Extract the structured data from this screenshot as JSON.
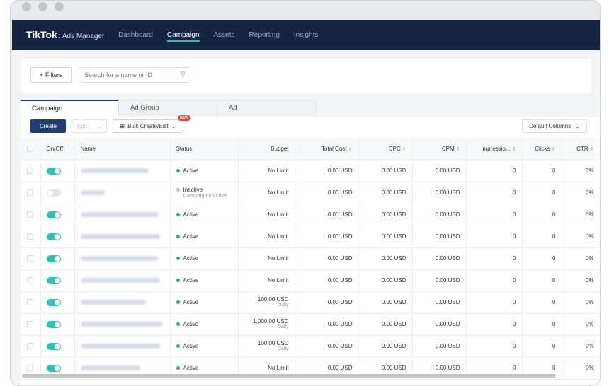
{
  "window": {
    "dots": [
      "close",
      "minimize",
      "maximize"
    ]
  },
  "header": {
    "logo": "TikTok",
    "logo_sub": ": Ads Manager",
    "nav": [
      {
        "label": "Dashboard",
        "active": false
      },
      {
        "label": "Campaign",
        "active": true
      },
      {
        "label": "Assets",
        "active": false
      },
      {
        "label": "Reporting",
        "active": false
      },
      {
        "label": "Insights",
        "active": false
      }
    ]
  },
  "filters": {
    "button_label": "Filters",
    "search_placeholder": "Search for a name or ID"
  },
  "tabs": [
    "Campaign",
    "Ad Group",
    "Ad"
  ],
  "toolbar": {
    "create": "Create",
    "edit": "Edit",
    "bulk": "Bulk Create/Edit",
    "new_badge": "NEW",
    "columns": "Default Columns"
  },
  "table": {
    "headers": [
      "On/Off",
      "Name",
      "Status",
      "Budget",
      "Total Cost",
      "CPC",
      "CPM",
      "Impressio...",
      "Clicks",
      "CTR"
    ],
    "rows": [
      {
        "on": true,
        "status": "Active",
        "status_sub": "",
        "budget": "No Limit",
        "budget_sub": "",
        "cost": "0.00 USD",
        "cpc": "0.00 USD",
        "cpm": "0.00 USD",
        "impr": "0",
        "clicks": "0",
        "ctr": "0%"
      },
      {
        "on": false,
        "status": "Inactive",
        "status_sub": "Campaign inactive",
        "budget": "No Limit",
        "budget_sub": "",
        "cost": "0.00 USD",
        "cpc": "0.00 USD",
        "cpm": "0.00 USD",
        "impr": "0",
        "clicks": "0",
        "ctr": "0%"
      },
      {
        "on": true,
        "status": "Active",
        "status_sub": "",
        "budget": "No Limit",
        "budget_sub": "",
        "cost": "0.00 USD",
        "cpc": "0.00 USD",
        "cpm": "0.00 USD",
        "impr": "0",
        "clicks": "0",
        "ctr": "0%"
      },
      {
        "on": true,
        "status": "Active",
        "status_sub": "",
        "budget": "No Limit",
        "budget_sub": "",
        "cost": "0.00 USD",
        "cpc": "0.00 USD",
        "cpm": "0.00 USD",
        "impr": "0",
        "clicks": "0",
        "ctr": "0%"
      },
      {
        "on": true,
        "status": "Active",
        "status_sub": "",
        "budget": "No Limit",
        "budget_sub": "",
        "cost": "0.00 USD",
        "cpc": "0.00 USD",
        "cpm": "0.00 USD",
        "impr": "0",
        "clicks": "0",
        "ctr": "0%"
      },
      {
        "on": true,
        "status": "Active",
        "status_sub": "",
        "budget": "No Limit",
        "budget_sub": "",
        "cost": "0.00 USD",
        "cpc": "0.00 USD",
        "cpm": "0.00 USD",
        "impr": "0",
        "clicks": "0",
        "ctr": "0%"
      },
      {
        "on": true,
        "status": "Active",
        "status_sub": "",
        "budget": "100.00 USD",
        "budget_sub": "Daily",
        "cost": "0.00 USD",
        "cpc": "0.00 USD",
        "cpm": "0.00 USD",
        "impr": "0",
        "clicks": "0",
        "ctr": "0%"
      },
      {
        "on": true,
        "status": "Active",
        "status_sub": "",
        "budget": "1,000.00 USD",
        "budget_sub": "Daily",
        "cost": "0.00 USD",
        "cpc": "0.00 USD",
        "cpm": "0.00 USD",
        "impr": "0",
        "clicks": "0",
        "ctr": "0%"
      },
      {
        "on": true,
        "status": "Active",
        "status_sub": "",
        "budget": "100.00 USD",
        "budget_sub": "Daily",
        "cost": "0.00 USD",
        "cpc": "0.00 USD",
        "cpm": "0.00 USD",
        "impr": "0",
        "clicks": "0",
        "ctr": "0%"
      },
      {
        "on": true,
        "status": "Active",
        "status_sub": "",
        "budget": "No Limit",
        "budget_sub": "",
        "cost": "0.00 USD",
        "cpc": "0.00 USD",
        "cpm": "0.00 USD",
        "impr": "0",
        "clicks": "0",
        "ctr": "0%"
      }
    ]
  }
}
